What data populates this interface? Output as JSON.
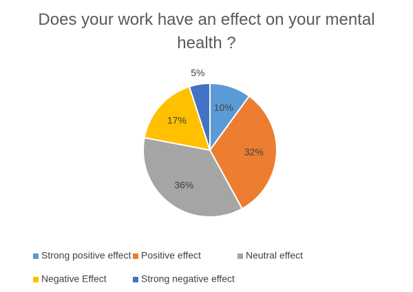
{
  "chart_data": {
    "type": "pie",
    "title": "Does your work have an effect on your mental health ?",
    "categories": [
      "Strong positive effect",
      "Positive effect",
      "Neutral effect",
      "Negative Effect",
      "Strong negative effect"
    ],
    "values": [
      10,
      32,
      36,
      17,
      5
    ],
    "value_labels": [
      "10%",
      "32%",
      "36%",
      "17%",
      "5%"
    ],
    "colors": [
      "#5b9bd5",
      "#ed7d31",
      "#a5a5a5",
      "#ffc000",
      "#4472c4"
    ],
    "legend": "bottom"
  }
}
